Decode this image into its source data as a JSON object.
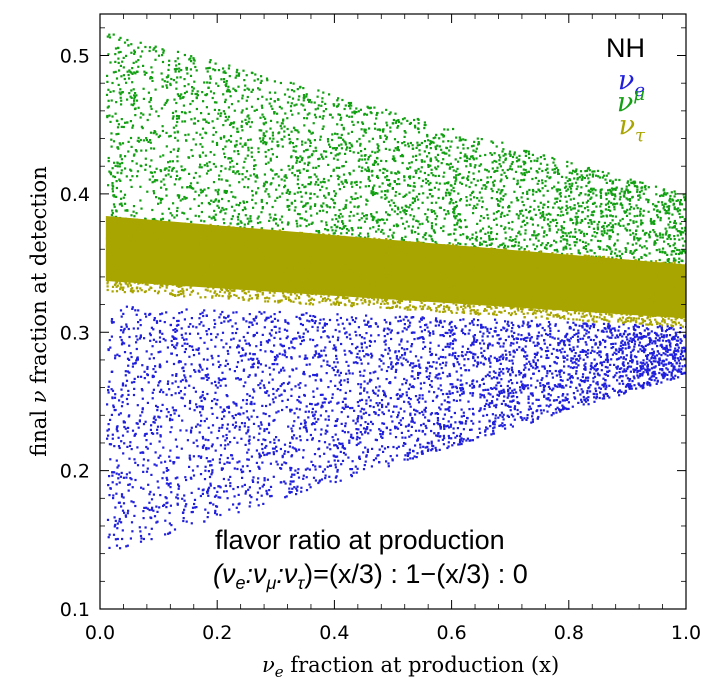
{
  "chart_data": {
    "type": "scatter",
    "title": "",
    "xlabel_main": "ν",
    "xlabel_sub": "e",
    "xlabel_rest": " fraction at production (x)",
    "ylabel_pre": "final ",
    "ylabel_nu": "ν",
    "ylabel_post": " fraction at detection",
    "xlim": [
      0.0,
      1.0
    ],
    "ylim": [
      0.1,
      0.53
    ],
    "x_ticks": [
      0.0,
      0.2,
      0.4,
      0.6,
      0.8,
      1.0
    ],
    "x_tick_labels": [
      "0.0",
      "0.2",
      "0.4",
      "0.6",
      "0.8",
      "1.0"
    ],
    "y_ticks": [
      0.1,
      0.2,
      0.3,
      0.4,
      0.5
    ],
    "y_tick_labels": [
      "0.1",
      "0.2",
      "0.3",
      "0.4",
      "0.5"
    ],
    "legend": {
      "title": "NH",
      "position": "top-right",
      "entries": [
        {
          "symbol": "ν",
          "sub": "e",
          "sup": "",
          "color": "#1f1fdc"
        },
        {
          "symbol": "ν",
          "sub": "",
          "sup": "μ",
          "color": "#12a012"
        },
        {
          "symbol": "ν",
          "sub": "τ",
          "sup": "",
          "color": "#a8a400"
        }
      ]
    },
    "annotation": {
      "line1": "flavor ratio at production",
      "line2_parts": [
        "(ν",
        "e",
        ":ν",
        "μ",
        ":ν",
        "τ",
        ")=(x/3) : 1−(x/3) : 0"
      ]
    },
    "series": [
      {
        "name": "ν_e",
        "color": "#1f1fdc",
        "band_x": [
          0.0,
          1.0
        ],
        "lower_y": [
          0.14,
          0.27
        ],
        "upper_y": [
          0.32,
          0.305
        ],
        "density": "dense"
      },
      {
        "name": "ν_μ",
        "color": "#12a012",
        "band_x": [
          0.0,
          1.0
        ],
        "lower_y": [
          0.36,
          0.34
        ],
        "upper_y": [
          0.52,
          0.4
        ],
        "density": "dense"
      },
      {
        "name": "ν_τ",
        "color": "#a8a400",
        "band_x": [
          0.0,
          1.0
        ],
        "lower_y": [
          0.325,
          0.3
        ],
        "upper_y": [
          0.39,
          0.355
        ],
        "density": "dense"
      }
    ]
  }
}
